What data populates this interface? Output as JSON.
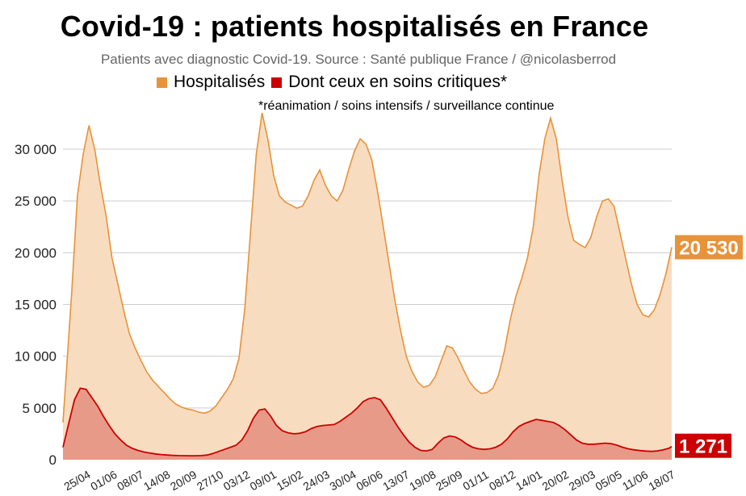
{
  "title": "Covid-19 : patients hospitalisés en France",
  "subtitle": "Patients avec diagnostic Covid-19. Source : Santé publique France / @nicolasberrod",
  "note": "*réanimation / soins intensifs / surveillance continue",
  "colors": {
    "hospital_line": "#e8923a",
    "hospital_fill": "#f8dcc0",
    "critical_line": "#cc0000",
    "critical_fill": "#e89a88",
    "grid": "#cccccc",
    "hospital_badge": "#e8923a",
    "critical_badge": "#cc0000"
  },
  "chart_data": {
    "type": "area",
    "title": "Covid-19 : patients hospitalisés en France",
    "ylim": [
      0,
      34000
    ],
    "yticks": [
      0,
      5000,
      10000,
      15000,
      20000,
      25000,
      30000
    ],
    "ytick_labels": [
      "0",
      "5 000",
      "10 000",
      "15 000",
      "20 000",
      "25 000",
      "30 000"
    ],
    "xtick_labels": [
      "25/04",
      "01/06",
      "08/07",
      "14/08",
      "20/09",
      "27/10",
      "03/12",
      "09/01",
      "15/02",
      "24/03",
      "30/04",
      "06/06",
      "13/07",
      "19/08",
      "25/09",
      "01/11",
      "08/12",
      "14/01",
      "20/02",
      "29/03",
      "05/05",
      "11/06",
      "18/07"
    ],
    "series": [
      {
        "name": "Hospitalisés",
        "last_value": 20530,
        "last_label": "20 530",
        "points": [
          [
            0,
            3600
          ],
          [
            3,
            16000
          ],
          [
            5,
            25500
          ],
          [
            7,
            29500
          ],
          [
            9,
            32300
          ],
          [
            11,
            30000
          ],
          [
            13,
            26500
          ],
          [
            15,
            23500
          ],
          [
            17,
            19500
          ],
          [
            19,
            17000
          ],
          [
            21,
            14500
          ],
          [
            23,
            12200
          ],
          [
            25,
            10800
          ],
          [
            27,
            9600
          ],
          [
            29,
            8500
          ],
          [
            31,
            7700
          ],
          [
            33,
            7100
          ],
          [
            35,
            6500
          ],
          [
            37,
            5900
          ],
          [
            39,
            5400
          ],
          [
            41,
            5100
          ],
          [
            43,
            4900
          ],
          [
            45,
            4800
          ],
          [
            47,
            4600
          ],
          [
            49,
            4500
          ],
          [
            51,
            4700
          ],
          [
            53,
            5200
          ],
          [
            55,
            6000
          ],
          [
            57,
            6800
          ],
          [
            59,
            7800
          ],
          [
            61,
            9800
          ],
          [
            63,
            14500
          ],
          [
            65,
            22000
          ],
          [
            67,
            29500
          ],
          [
            69,
            33500
          ],
          [
            71,
            31000
          ],
          [
            73,
            27500
          ],
          [
            75,
            25500
          ],
          [
            77,
            24900
          ],
          [
            79,
            24600
          ],
          [
            81,
            24300
          ],
          [
            83,
            24500
          ],
          [
            85,
            25500
          ],
          [
            87,
            27000
          ],
          [
            89,
            28000
          ],
          [
            91,
            26500
          ],
          [
            93,
            25500
          ],
          [
            95,
            25000
          ],
          [
            97,
            26000
          ],
          [
            99,
            28000
          ],
          [
            101,
            29800
          ],
          [
            103,
            31000
          ],
          [
            105,
            30500
          ],
          [
            107,
            29000
          ],
          [
            109,
            26000
          ],
          [
            111,
            22500
          ],
          [
            113,
            19000
          ],
          [
            115,
            15500
          ],
          [
            117,
            12500
          ],
          [
            119,
            10000
          ],
          [
            121,
            8500
          ],
          [
            123,
            7500
          ],
          [
            125,
            7000
          ],
          [
            127,
            7200
          ],
          [
            129,
            8000
          ],
          [
            131,
            9500
          ],
          [
            133,
            11000
          ],
          [
            135,
            10800
          ],
          [
            137,
            9800
          ],
          [
            139,
            8600
          ],
          [
            141,
            7500
          ],
          [
            143,
            6800
          ],
          [
            145,
            6400
          ],
          [
            147,
            6500
          ],
          [
            149,
            6900
          ],
          [
            151,
            8200
          ],
          [
            153,
            10500
          ],
          [
            155,
            13500
          ],
          [
            157,
            15800
          ],
          [
            159,
            17500
          ],
          [
            161,
            19500
          ],
          [
            163,
            22500
          ],
          [
            165,
            27500
          ],
          [
            167,
            31000
          ],
          [
            169,
            33000
          ],
          [
            171,
            31000
          ],
          [
            173,
            27000
          ],
          [
            175,
            23500
          ],
          [
            177,
            21200
          ],
          [
            179,
            20800
          ],
          [
            181,
            20500
          ],
          [
            183,
            21500
          ],
          [
            185,
            23500
          ],
          [
            187,
            25000
          ],
          [
            189,
            25200
          ],
          [
            191,
            24500
          ],
          [
            193,
            22000
          ],
          [
            195,
            19500
          ],
          [
            197,
            17000
          ],
          [
            199,
            15000
          ],
          [
            201,
            14000
          ],
          [
            203,
            13800
          ],
          [
            205,
            14500
          ],
          [
            207,
            16000
          ],
          [
            209,
            18000
          ],
          [
            211,
            20530
          ]
        ]
      },
      {
        "name": "Dont ceux en soins critiques*",
        "last_value": 1271,
        "last_label": "1 271",
        "points": [
          [
            0,
            1200
          ],
          [
            2,
            3500
          ],
          [
            4,
            5800
          ],
          [
            6,
            6900
          ],
          [
            8,
            6800
          ],
          [
            10,
            6000
          ],
          [
            12,
            5200
          ],
          [
            14,
            4200
          ],
          [
            16,
            3300
          ],
          [
            18,
            2500
          ],
          [
            20,
            1900
          ],
          [
            22,
            1400
          ],
          [
            24,
            1100
          ],
          [
            26,
            900
          ],
          [
            28,
            750
          ],
          [
            30,
            650
          ],
          [
            32,
            560
          ],
          [
            34,
            500
          ],
          [
            36,
            450
          ],
          [
            38,
            420
          ],
          [
            40,
            400
          ],
          [
            42,
            390
          ],
          [
            44,
            380
          ],
          [
            46,
            380
          ],
          [
            48,
            400
          ],
          [
            50,
            450
          ],
          [
            52,
            600
          ],
          [
            54,
            800
          ],
          [
            56,
            1000
          ],
          [
            58,
            1200
          ],
          [
            60,
            1400
          ],
          [
            62,
            1900
          ],
          [
            64,
            2800
          ],
          [
            66,
            4000
          ],
          [
            68,
            4800
          ],
          [
            70,
            4900
          ],
          [
            72,
            4200
          ],
          [
            74,
            3300
          ],
          [
            76,
            2800
          ],
          [
            78,
            2600
          ],
          [
            80,
            2500
          ],
          [
            82,
            2550
          ],
          [
            84,
            2700
          ],
          [
            86,
            3000
          ],
          [
            88,
            3200
          ],
          [
            90,
            3300
          ],
          [
            92,
            3350
          ],
          [
            94,
            3400
          ],
          [
            96,
            3700
          ],
          [
            98,
            4100
          ],
          [
            100,
            4500
          ],
          [
            102,
            5000
          ],
          [
            104,
            5600
          ],
          [
            106,
            5900
          ],
          [
            108,
            6000
          ],
          [
            110,
            5800
          ],
          [
            112,
            5000
          ],
          [
            114,
            4100
          ],
          [
            116,
            3200
          ],
          [
            118,
            2400
          ],
          [
            120,
            1700
          ],
          [
            122,
            1200
          ],
          [
            124,
            900
          ],
          [
            126,
            850
          ],
          [
            128,
            1000
          ],
          [
            130,
            1600
          ],
          [
            132,
            2100
          ],
          [
            134,
            2300
          ],
          [
            136,
            2200
          ],
          [
            138,
            1900
          ],
          [
            140,
            1500
          ],
          [
            142,
            1200
          ],
          [
            144,
            1050
          ],
          [
            146,
            1000
          ],
          [
            148,
            1050
          ],
          [
            150,
            1200
          ],
          [
            152,
            1500
          ],
          [
            154,
            2000
          ],
          [
            156,
            2700
          ],
          [
            158,
            3200
          ],
          [
            160,
            3500
          ],
          [
            162,
            3700
          ],
          [
            164,
            3900
          ],
          [
            166,
            3800
          ],
          [
            168,
            3700
          ],
          [
            170,
            3600
          ],
          [
            172,
            3300
          ],
          [
            174,
            2900
          ],
          [
            176,
            2400
          ],
          [
            178,
            1900
          ],
          [
            180,
            1600
          ],
          [
            182,
            1500
          ],
          [
            184,
            1500
          ],
          [
            186,
            1550
          ],
          [
            188,
            1600
          ],
          [
            190,
            1550
          ],
          [
            192,
            1400
          ],
          [
            194,
            1200
          ],
          [
            196,
            1050
          ],
          [
            198,
            950
          ],
          [
            200,
            880
          ],
          [
            202,
            830
          ],
          [
            204,
            800
          ],
          [
            206,
            850
          ],
          [
            208,
            950
          ],
          [
            210,
            1100
          ],
          [
            211,
            1271
          ]
        ]
      }
    ],
    "legend": [
      "Hospitalisés",
      "Dont ceux en soins critiques*"
    ]
  }
}
